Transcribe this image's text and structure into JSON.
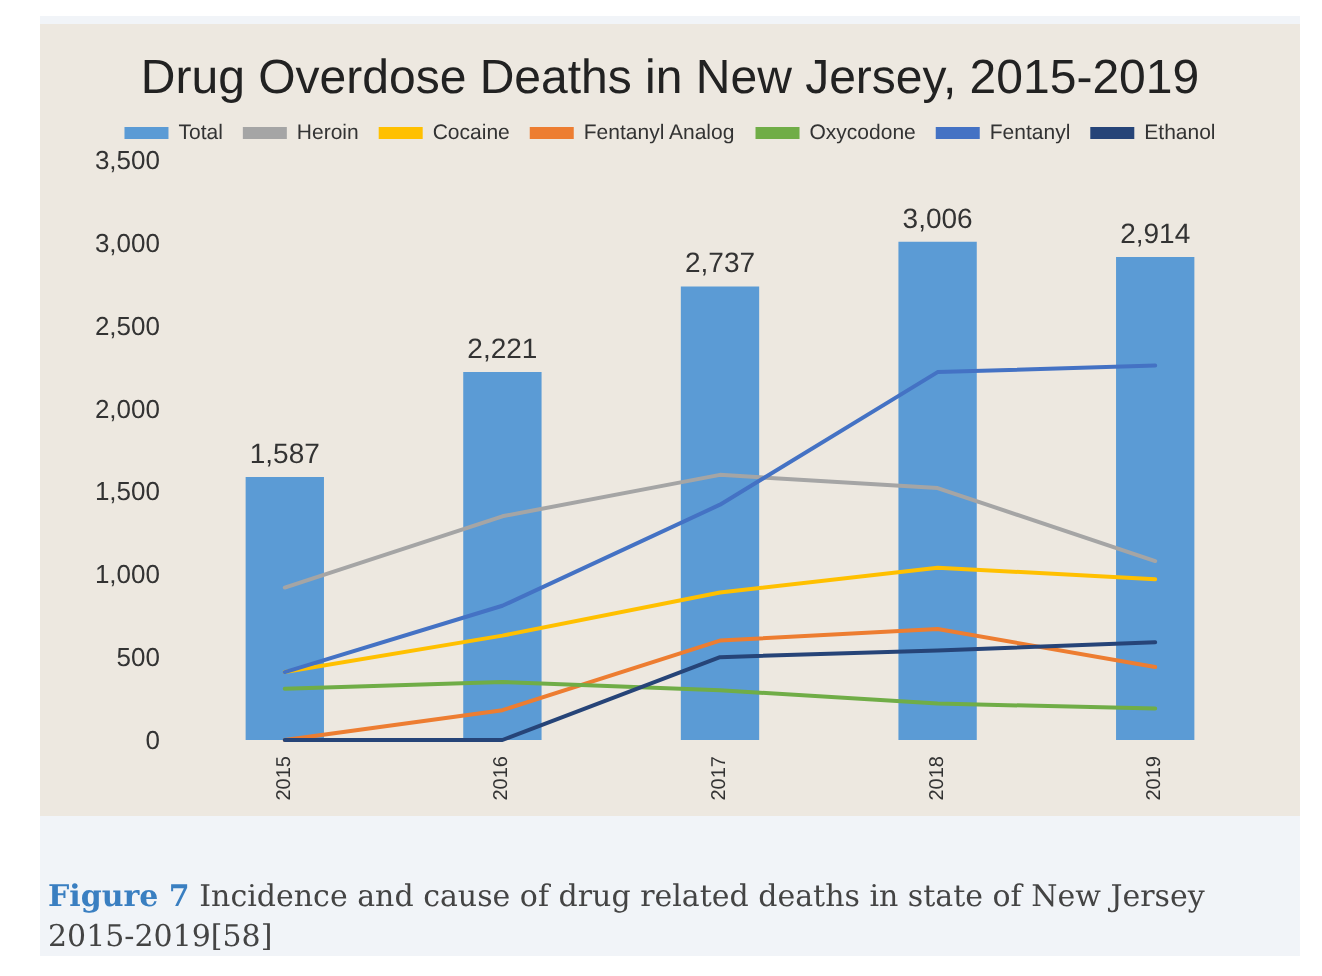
{
  "chart_data": {
    "type": "bar",
    "title": "Drug Overdose Deaths in New Jersey, 2015-2019",
    "categories": [
      "2015",
      "2016",
      "2017",
      "2018",
      "2019"
    ],
    "series": [
      {
        "name": "Total",
        "color": "#5b9bd5",
        "values": [
          1587,
          2221,
          2737,
          3006,
          2914
        ],
        "value_labels": [
          "1,587",
          "2,221",
          "2,737",
          "3,006",
          "2,914"
        ]
      },
      {
        "name": "Heroin",
        "type": "line",
        "color": "#a5a5a5",
        "values": [
          920,
          1350,
          1600,
          1520,
          1080
        ]
      },
      {
        "name": "Cocaine",
        "type": "line",
        "color": "#ffc000",
        "values": [
          410,
          630,
          890,
          1040,
          970
        ]
      },
      {
        "name": "Fentanyl Analog",
        "type": "line",
        "color": "#ed7d31",
        "values": [
          0,
          180,
          600,
          670,
          440
        ]
      },
      {
        "name": "Oxycodone",
        "type": "line",
        "color": "#70ad47",
        "values": [
          310,
          350,
          300,
          220,
          190
        ]
      },
      {
        "name": "Fentanyl",
        "type": "line",
        "color": "#4472c4",
        "values": [
          410,
          810,
          1420,
          2220,
          2260
        ]
      },
      {
        "name": "Ethanol",
        "type": "line",
        "color": "#264478",
        "values": [
          0,
          0,
          500,
          540,
          590
        ]
      }
    ],
    "ylim": [
      0,
      3500
    ],
    "yticks": [
      {
        "value": 0,
        "label": "0"
      },
      {
        "value": 500,
        "label": "500"
      },
      {
        "value": 1000,
        "label": "1,000"
      },
      {
        "value": 1500,
        "label": "1,500"
      },
      {
        "value": 2000,
        "label": "2,000"
      },
      {
        "value": 2500,
        "label": "2,500"
      },
      {
        "value": 3000,
        "label": "3,000"
      },
      {
        "value": 3500,
        "label": "3,500"
      }
    ],
    "grid": false,
    "legend": "top",
    "marker": "none",
    "line_style": "solid",
    "annotations": [
      "Figure 7 Incidence and cause of drug related deaths in state of New Jersey 2015-2019[58]"
    ]
  }
}
